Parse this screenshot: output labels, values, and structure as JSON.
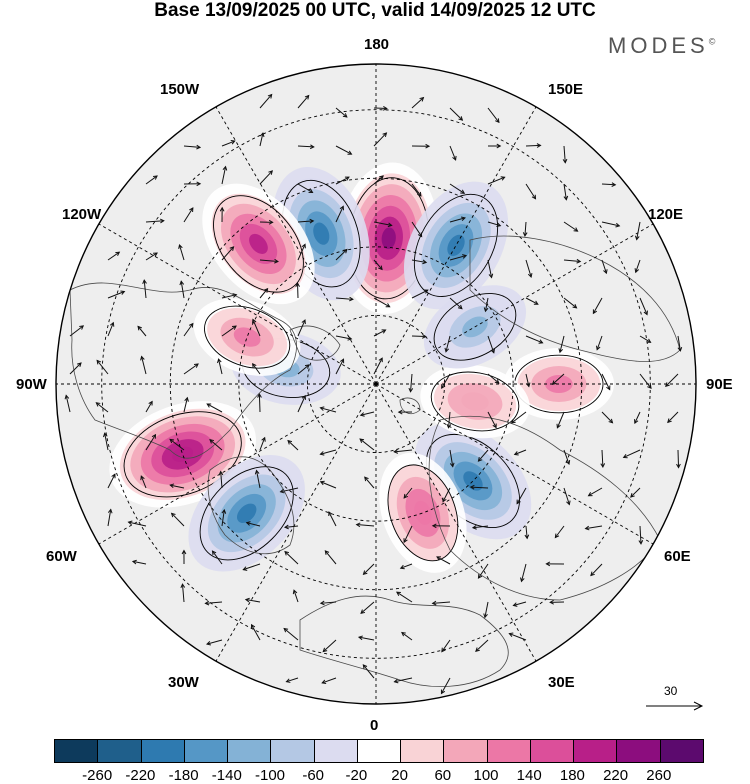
{
  "title": "Base 13/09/2025 00 UTC, valid 14/09/2025 12 UTC",
  "brand": {
    "name": "MODES",
    "mark": "©"
  },
  "longitude_labels": {
    "top": "180",
    "bottom": "0",
    "left": "90W",
    "right": "90E",
    "upper_left_1": "150W",
    "upper_left_2": "120W",
    "upper_right_1": "150E",
    "upper_right_2": "120E",
    "lower_left_1": "60W",
    "lower_left_2": "30W",
    "lower_right_1": "60E",
    "lower_right_2": "30E"
  },
  "reference_vector": {
    "value": "30"
  },
  "colorbar": {
    "colors": [
      "#0d3a5c",
      "#1f5f8b",
      "#2e7ab0",
      "#5597c6",
      "#84b2d6",
      "#b4c8e4",
      "#dcdcf0",
      "#ffffff",
      "#f9d3d6",
      "#f3a7b9",
      "#ec77a6",
      "#dc4f9a",
      "#b81f88",
      "#8c0d7e",
      "#5c0a6e"
    ],
    "tick_labels": [
      "-260",
      "-220",
      "-180",
      "-140",
      "-100",
      "-60",
      "-20",
      "20",
      "60",
      "100",
      "140",
      "180",
      "220",
      "260"
    ]
  },
  "chart_data": {
    "type": "polar-stereographic map",
    "field": "geopotential height anomaly with wind vectors",
    "units_scale": [
      -260,
      260
    ],
    "levels": [
      -260,
      -220,
      -180,
      -140,
      -100,
      -60,
      -20,
      20,
      60,
      100,
      140,
      180,
      220,
      260
    ],
    "anomalies": [
      {
        "name": "positive-170E",
        "lon": 175,
        "lat": 58,
        "value": 240
      },
      {
        "name": "negative-160W",
        "lon": -160,
        "lat": 55,
        "value": -200
      },
      {
        "name": "positive-140W",
        "lon": -140,
        "lat": 50,
        "value": 200
      },
      {
        "name": "negative-145E",
        "lon": 150,
        "lat": 55,
        "value": -180
      },
      {
        "name": "positive-90E",
        "lon": 90,
        "lat": 50,
        "value": 120
      },
      {
        "name": "positive-70W",
        "lon": -70,
        "lat": 45,
        "value": 220
      },
      {
        "name": "negative-50W",
        "lon": -45,
        "lat": 50,
        "value": -180
      },
      {
        "name": "negative-45E",
        "lon": 45,
        "lat": 60,
        "value": -200
      },
      {
        "name": "positive-20E",
        "lon": 20,
        "lat": 60,
        "value": 140
      },
      {
        "name": "negative-100W",
        "lon": -100,
        "lat": 70,
        "value": -120
      },
      {
        "name": "positive-110W",
        "lon": -110,
        "lat": 60,
        "value": 120
      },
      {
        "name": "positive-80E",
        "lon": 80,
        "lat": 68,
        "value": 100
      },
      {
        "name": "negative-120E",
        "lon": 120,
        "lat": 65,
        "value": -100
      }
    ],
    "reference_vector_magnitude": 30
  }
}
